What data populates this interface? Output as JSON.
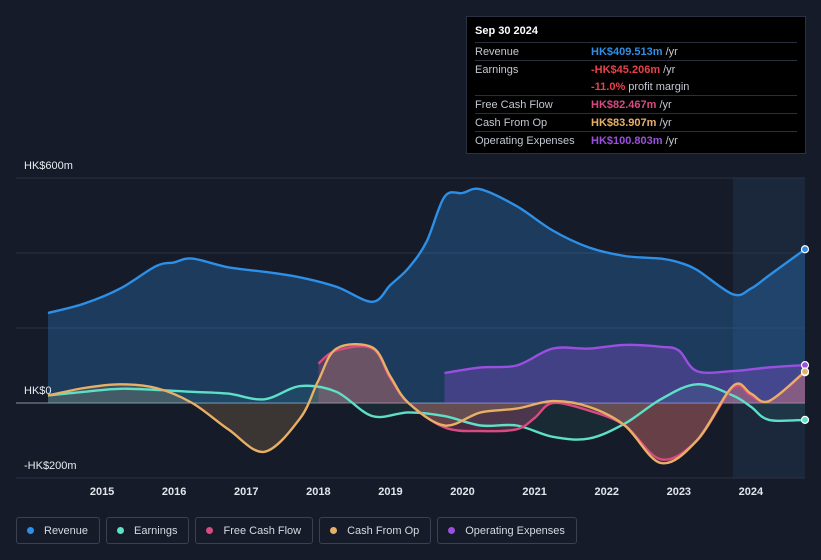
{
  "chart_data": {
    "type": "area",
    "y_axis_labels": [
      "HK$600m",
      "HK$0",
      "-HK$200m"
    ],
    "ylim": [
      -200,
      600
    ],
    "xlim": [
      2014.25,
      2024.75
    ],
    "x_ticks": [
      "2015",
      "2016",
      "2017",
      "2018",
      "2019",
      "2020",
      "2021",
      "2022",
      "2023",
      "2024"
    ],
    "series": [
      {
        "name": "Revenue",
        "color": "#2e8fe6",
        "points": [
          [
            2014.25,
            240
          ],
          [
            2014.75,
            265
          ],
          [
            2015.25,
            305
          ],
          [
            2015.75,
            365
          ],
          [
            2016.0,
            375
          ],
          [
            2016.25,
            385
          ],
          [
            2016.75,
            362
          ],
          [
            2017.25,
            350
          ],
          [
            2017.75,
            335
          ],
          [
            2018.25,
            310
          ],
          [
            2018.75,
            270
          ],
          [
            2019.0,
            315
          ],
          [
            2019.25,
            360
          ],
          [
            2019.5,
            430
          ],
          [
            2019.75,
            550
          ],
          [
            2020.0,
            560
          ],
          [
            2020.25,
            570
          ],
          [
            2020.75,
            525
          ],
          [
            2021.25,
            460
          ],
          [
            2021.75,
            415
          ],
          [
            2022.25,
            392
          ],
          [
            2022.75,
            385
          ],
          [
            2023.0,
            375
          ],
          [
            2023.25,
            355
          ],
          [
            2023.75,
            290
          ],
          [
            2024.0,
            305
          ],
          [
            2024.25,
            340
          ],
          [
            2024.75,
            410
          ]
        ]
      },
      {
        "name": "Earnings",
        "color": "#5ee0c6",
        "points": [
          [
            2014.25,
            20
          ],
          [
            2014.75,
            30
          ],
          [
            2015.25,
            38
          ],
          [
            2015.75,
            35
          ],
          [
            2016.25,
            30
          ],
          [
            2016.75,
            25
          ],
          [
            2017.25,
            10
          ],
          [
            2017.75,
            45
          ],
          [
            2018.25,
            30
          ],
          [
            2018.75,
            -35
          ],
          [
            2019.25,
            -25
          ],
          [
            2019.75,
            -35
          ],
          [
            2020.25,
            -60
          ],
          [
            2020.75,
            -60
          ],
          [
            2021.25,
            -90
          ],
          [
            2021.75,
            -95
          ],
          [
            2022.25,
            -55
          ],
          [
            2022.75,
            10
          ],
          [
            2023.25,
            50
          ],
          [
            2023.75,
            20
          ],
          [
            2024.0,
            -10
          ],
          [
            2024.25,
            -45
          ],
          [
            2024.75,
            -45
          ]
        ]
      },
      {
        "name": "Free Cash Flow",
        "color": "#d94a80",
        "points": [
          [
            2018.0,
            105
          ],
          [
            2018.25,
            140
          ],
          [
            2018.75,
            145
          ],
          [
            2019.0,
            65
          ],
          [
            2019.25,
            0
          ],
          [
            2019.75,
            -65
          ],
          [
            2020.25,
            -75
          ],
          [
            2020.75,
            -70
          ],
          [
            2021.0,
            -40
          ],
          [
            2021.25,
            0
          ],
          [
            2021.75,
            -20
          ],
          [
            2022.25,
            -60
          ],
          [
            2022.75,
            -150
          ],
          [
            2023.25,
            -100
          ],
          [
            2023.75,
            40
          ],
          [
            2024.0,
            20
          ],
          [
            2024.25,
            5
          ],
          [
            2024.75,
            82
          ]
        ]
      },
      {
        "name": "Cash From Op",
        "color": "#e8b066",
        "points": [
          [
            2014.25,
            20
          ],
          [
            2014.75,
            40
          ],
          [
            2015.25,
            50
          ],
          [
            2015.75,
            40
          ],
          [
            2016.25,
            0
          ],
          [
            2016.75,
            -70
          ],
          [
            2017.25,
            -130
          ],
          [
            2017.75,
            -40
          ],
          [
            2018.0,
            60
          ],
          [
            2018.25,
            145
          ],
          [
            2018.75,
            148
          ],
          [
            2019.0,
            70
          ],
          [
            2019.25,
            0
          ],
          [
            2019.75,
            -60
          ],
          [
            2020.25,
            -25
          ],
          [
            2020.75,
            -15
          ],
          [
            2021.25,
            5
          ],
          [
            2021.75,
            -10
          ],
          [
            2022.25,
            -60
          ],
          [
            2022.75,
            -160
          ],
          [
            2023.25,
            -100
          ],
          [
            2023.75,
            45
          ],
          [
            2024.0,
            25
          ],
          [
            2024.25,
            5
          ],
          [
            2024.75,
            84
          ]
        ]
      },
      {
        "name": "Operating Expenses",
        "color": "#9b4fe0",
        "points": [
          [
            2019.75,
            80
          ],
          [
            2020.25,
            95
          ],
          [
            2020.75,
            100
          ],
          [
            2021.25,
            145
          ],
          [
            2021.75,
            145
          ],
          [
            2022.25,
            155
          ],
          [
            2022.75,
            150
          ],
          [
            2023.0,
            140
          ],
          [
            2023.25,
            85
          ],
          [
            2023.75,
            85
          ],
          [
            2024.25,
            95
          ],
          [
            2024.75,
            101
          ]
        ]
      }
    ]
  },
  "tooltip": {
    "date": "Sep 30 2024",
    "rows": [
      {
        "label": "Revenue",
        "value": "HK$409.513m",
        "unit": "/yr",
        "color": "#2e8fe6"
      },
      {
        "label": "Earnings",
        "value": "-HK$45.206m",
        "unit": "/yr",
        "color": "#e8414a"
      },
      {
        "label": "",
        "value": "-11.0%",
        "unit": "profit margin",
        "color": "#e8414a"
      },
      {
        "label": "Free Cash Flow",
        "value": "HK$82.467m",
        "unit": "/yr",
        "color": "#d94a80"
      },
      {
        "label": "Cash From Op",
        "value": "HK$83.907m",
        "unit": "/yr",
        "color": "#e8b066"
      },
      {
        "label": "Operating Expenses",
        "value": "HK$100.803m",
        "unit": "/yr",
        "color": "#9b4fe0"
      }
    ]
  },
  "legend": [
    {
      "label": "Revenue",
      "color": "#2e8fe6"
    },
    {
      "label": "Earnings",
      "color": "#5ee0c6"
    },
    {
      "label": "Free Cash Flow",
      "color": "#d94a80"
    },
    {
      "label": "Cash From Op",
      "color": "#e8b066"
    },
    {
      "label": "Operating Expenses",
      "color": "#9b4fe0"
    }
  ]
}
